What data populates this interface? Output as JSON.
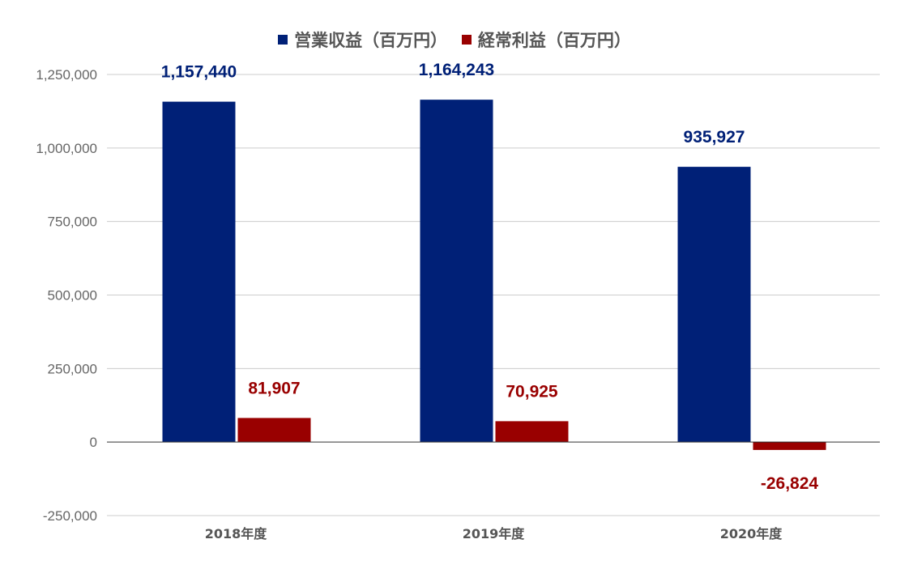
{
  "chart_data": {
    "type": "bar",
    "categories": [
      "2018年度",
      "2019年度",
      "2020年度"
    ],
    "series": [
      {
        "name": "営業収益（百万円）",
        "color": "#002077",
        "values": [
          1157440,
          1164243,
          935927
        ],
        "labels": [
          "1,157,440",
          "1,164,243",
          "935,927"
        ]
      },
      {
        "name": "経常利益（百万円）",
        "color": "#990000",
        "values": [
          81907,
          70925,
          -26824
        ],
        "labels": [
          "81,907",
          "70,925",
          "-26,824"
        ]
      }
    ],
    "ylim": [
      -250000,
      1250000
    ],
    "yticks": [
      -250000,
      0,
      250000,
      500000,
      750000,
      1000000,
      1250000
    ],
    "ytick_labels": [
      "-250,000",
      "0",
      "250,000",
      "500,000",
      "750,000",
      "1,000,000",
      "1,250,000"
    ],
    "legend_position": "top-center",
    "grid": true,
    "gridline_color": "#cccccc",
    "axis_color": "#333333"
  }
}
